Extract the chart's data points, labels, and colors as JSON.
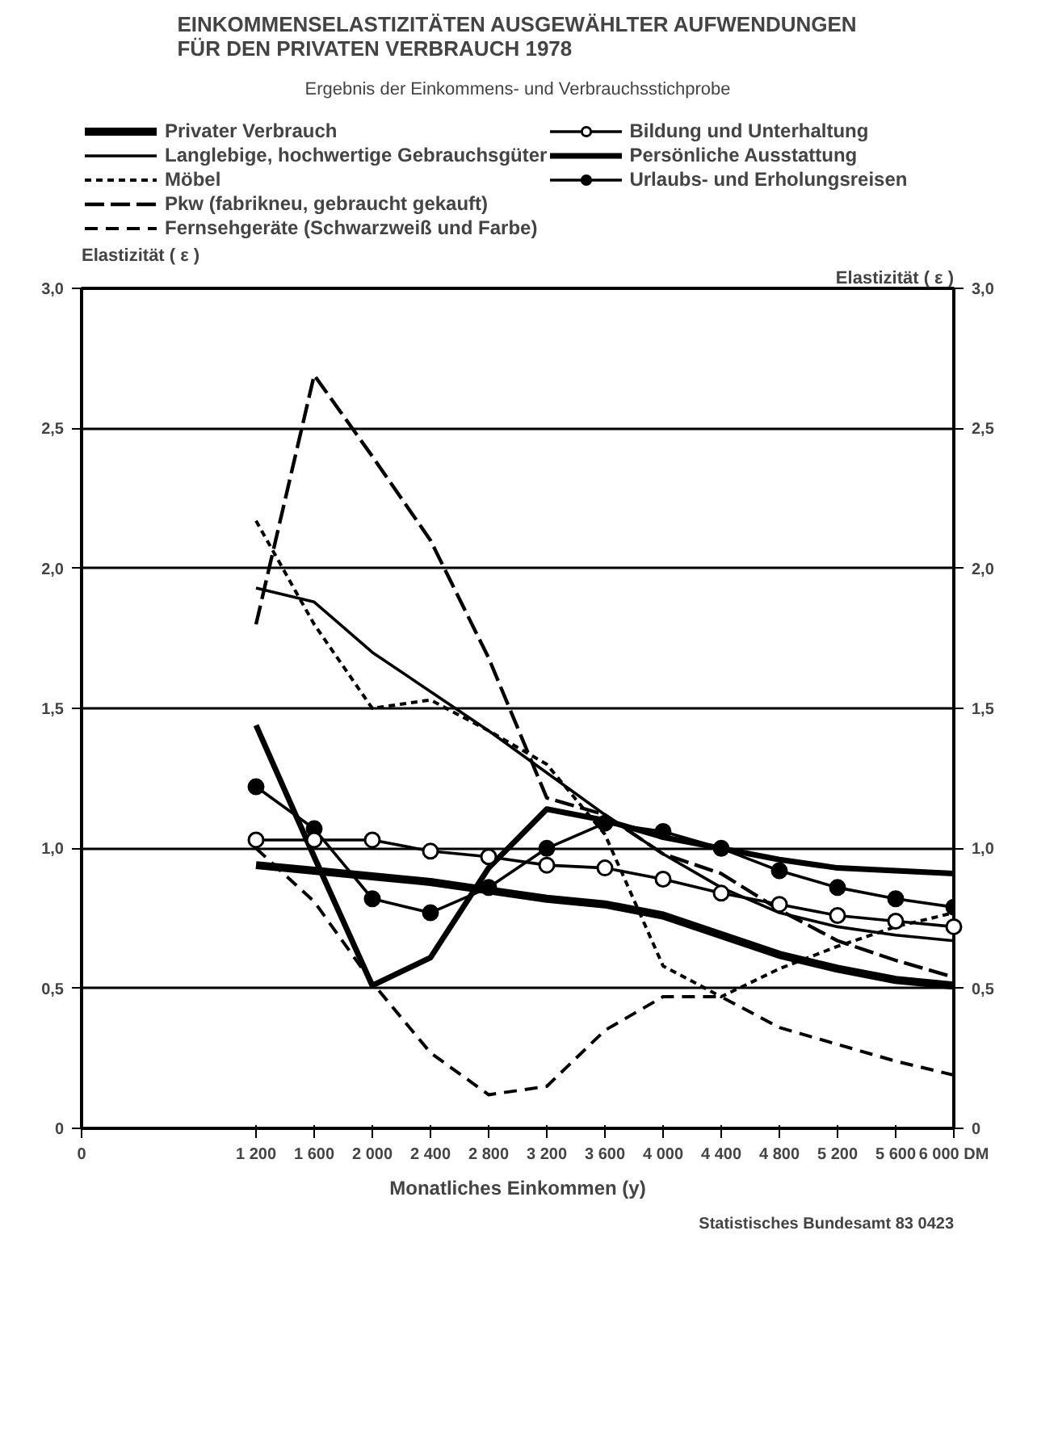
{
  "chart_data": {
    "type": "line",
    "title": "EINKOMMENSELASTIZITÄTEN AUSGEWÄHLTER AUFWENDUNGEN\nFÜR DEN PRIVATEN VERBRAUCH 1978",
    "subtitle": "Ergebnis der Einkommens- und Verbrauchsstichprobe",
    "xlabel": "Monatliches Einkommen (y)",
    "ylabel": "Elastizität ( ε )",
    "y2label": "Elastizität ( ε )",
    "annotations": [
      "Statistisches Bundesamt 83 0423"
    ],
    "x": [
      1200,
      1600,
      2000,
      2400,
      2800,
      3200,
      3600,
      4000,
      4400,
      4800,
      5200,
      5600,
      6000
    ],
    "series": [
      {
        "name": "Privater Verbrauch",
        "color": "#000000",
        "line_style": "solid",
        "values": [
          0.94,
          0.92,
          0.9,
          0.88,
          0.85,
          0.82,
          0.8,
          0.76,
          0.69,
          0.62,
          0.57,
          0.53,
          0.51
        ]
      },
      {
        "name": "Langlebige, hochwertige Gebrauchsgüter",
        "color": "#000000",
        "line_style": "solid",
        "values": [
          1.93,
          1.88,
          1.7,
          1.56,
          1.42,
          1.27,
          1.12,
          0.98,
          0.86,
          0.77,
          0.72,
          0.69,
          0.67
        ]
      },
      {
        "name": "Möbel",
        "color": "#000000",
        "line_style": "dotted",
        "values": [
          2.17,
          1.8,
          1.5,
          1.53,
          1.42,
          1.3,
          1.05,
          0.58,
          0.47,
          0.57,
          0.65,
          0.72,
          0.77
        ]
      },
      {
        "name": "Pkw (fabrikneu, gebraucht gekauft)",
        "color": "#000000",
        "line_style": "dashed",
        "values": [
          1.8,
          2.69,
          2.4,
          2.1,
          1.68,
          1.18,
          1.12,
          0.98,
          0.91,
          0.78,
          0.67,
          0.6,
          0.54
        ]
      },
      {
        "name": "Fernsehgeräte (Schwarzweiß und Farbe)",
        "color": "#000000",
        "line_style": "dashed",
        "values": [
          1.0,
          0.81,
          0.52,
          0.27,
          0.12,
          0.15,
          0.35,
          0.47,
          0.47,
          0.36,
          0.3,
          0.24,
          0.19
        ]
      },
      {
        "name": "Bildung und Unterhaltung",
        "color": "#000000",
        "line_style": "solid",
        "marker": "circle",
        "values": [
          1.03,
          1.03,
          1.03,
          0.99,
          0.97,
          0.94,
          0.93,
          0.89,
          0.84,
          0.8,
          0.76,
          0.74,
          0.72
        ]
      },
      {
        "name": "Persönliche Ausstattung",
        "color": "#000000",
        "line_style": "solid",
        "values": [
          1.44,
          0.97,
          0.51,
          0.61,
          0.93,
          1.14,
          1.1,
          1.04,
          1.0,
          0.96,
          0.93,
          0.92,
          0.91
        ]
      },
      {
        "name": "Urlaubs- und Erholungsreisen",
        "color": "#000000",
        "line_style": "solid",
        "marker": "circle",
        "values": [
          1.22,
          1.07,
          0.82,
          0.77,
          0.86,
          1.0,
          1.09,
          1.06,
          1.0,
          0.92,
          0.86,
          0.82,
          0.79
        ]
      }
    ],
    "xlim": [
      0,
      6000
    ],
    "xticks": [
      0,
      {
        "value": 1200,
        "label": "1 200"
      },
      {
        "value": 1600,
        "label": "1 600"
      },
      {
        "value": 2000,
        "label": "2 000"
      },
      {
        "value": 2400,
        "label": "2 400"
      },
      {
        "value": 2800,
        "label": "2 800"
      },
      {
        "value": 3200,
        "label": "3 200"
      },
      {
        "value": 3600,
        "label": "3 600"
      },
      {
        "value": 4000,
        "label": "4 000"
      },
      {
        "value": 4400,
        "label": "4 400"
      },
      {
        "value": 4800,
        "label": "4 800"
      },
      {
        "value": 5200,
        "label": "5 200"
      },
      {
        "value": 5600,
        "label": "5 600"
      },
      {
        "value": 6000,
        "label": "6 000 DM"
      }
    ],
    "ylim": [
      0,
      3
    ],
    "yticks": [
      {
        "value": 0,
        "label": "0"
      },
      {
        "value": 0.5,
        "label": "0,5"
      },
      {
        "value": 1,
        "label": "1,0"
      },
      {
        "value": 1.5,
        "label": "1,5"
      },
      {
        "value": 2,
        "label": "2,0"
      },
      {
        "value": 2.5,
        "label": "2,5"
      },
      {
        "value": 3,
        "label": "3,0"
      }
    ],
    "y2lim": [
      0,
      3
    ],
    "y2ticks": [
      {
        "value": 0,
        "label": "0"
      },
      {
        "value": 0.5,
        "label": "0,5"
      },
      {
        "value": 1,
        "label": "1,0"
      },
      {
        "value": 1.5,
        "label": "1,5"
      },
      {
        "value": 2,
        "label": "2,0"
      },
      {
        "value": 2.5,
        "label": "2,5"
      },
      {
        "value": 3,
        "label": "3,0"
      }
    ],
    "grid": "y",
    "legend": "top"
  }
}
